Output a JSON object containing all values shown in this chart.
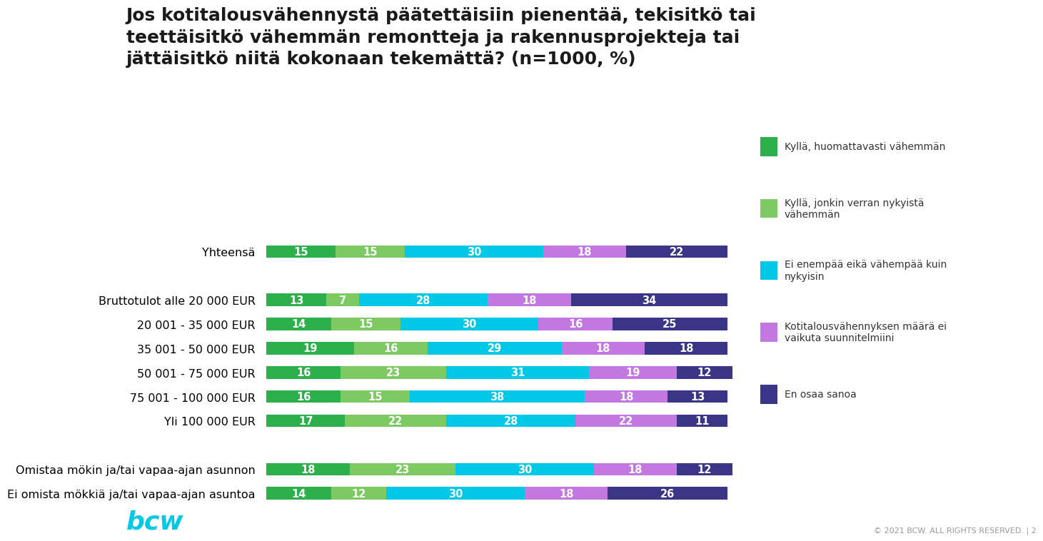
{
  "title": "Jos kotitalousvähennystä päätettäisiin pienentää, tekisitkö tai\nteettäisitkö vähemmän remontteja ja rakennusprojekteja tai\njättäisitkö niitä kokonaan tekemättä? (n=1000, %)",
  "categories": [
    "Yhteensä",
    "",
    "Bruttotulot alle 20 000 EUR",
    "20 001 - 35 000 EUR",
    "35 001 - 50 000 EUR",
    "50 001 - 75 000 EUR",
    "75 001 - 100 000 EUR",
    "Yli 100 000 EUR",
    "",
    "Omistaa mökin ja/tai vapaa-ajan asunnon",
    "Ei omista mökkiä ja/tai vapaa-ajan asuntoa"
  ],
  "data": [
    [
      15,
      15,
      30,
      18,
      22
    ],
    [
      0,
      0,
      0,
      0,
      0
    ],
    [
      13,
      7,
      28,
      18,
      34
    ],
    [
      14,
      15,
      30,
      16,
      25
    ],
    [
      19,
      16,
      29,
      18,
      18
    ],
    [
      16,
      23,
      31,
      19,
      12
    ],
    [
      16,
      15,
      38,
      18,
      13
    ],
    [
      17,
      22,
      28,
      22,
      11
    ],
    [
      0,
      0,
      0,
      0,
      0
    ],
    [
      18,
      23,
      30,
      18,
      12
    ],
    [
      14,
      12,
      30,
      18,
      26
    ]
  ],
  "colors": [
    "#2db04b",
    "#7dc962",
    "#00c8e6",
    "#c278e0",
    "#3b3587"
  ],
  "legend_labels": [
    "Kyllä, huomattavasti vähemmän",
    "Kyllä, jonkin verran nykyistä\nvähemmän",
    "Ei enempää eikä vähempää kuin\nnykyisin",
    "Kotitalousvähennyksen määrä ei\nvaikuta suunnitelmiini",
    "En osaa sanoa"
  ],
  "background_color": "#ffffff",
  "bar_height": 0.52,
  "value_fontsize": 10.5,
  "label_fontsize": 11.5
}
